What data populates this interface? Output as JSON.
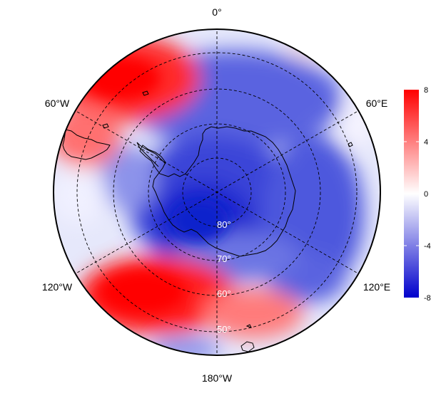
{
  "map": {
    "type": "polar-stereographic",
    "hemisphere": "south",
    "longitude_labels": {
      "top": "0°",
      "bottom": "180°W",
      "upper_left": "60°W",
      "upper_right": "60°E",
      "lower_left": "120°W",
      "lower_right": "120°E"
    },
    "latitude_labels": [
      "80°",
      "70°",
      "60°",
      "50°"
    ],
    "features": [
      "Antarctica coastline",
      "South America tip",
      "sub-Antarctic islands"
    ],
    "graticule_style": "dashed"
  },
  "colorbar": {
    "ticks": [
      "8",
      "4",
      "0",
      "-4",
      "-8"
    ],
    "min": -8,
    "max": 8,
    "colors": {
      "high": "#ff0000",
      "mid": "#ffffff",
      "low": "#0000cc"
    }
  },
  "field": {
    "description": "anomaly field with positive (red) and negative (blue) regions",
    "positive_regions": [
      "South Atlantic / 45-90°W mid-latitudes",
      "South Pacific ~150°W mid-latitudes"
    ],
    "negative_regions": [
      "Antarctic continent and adjacent seas",
      "Indian Ocean sector 60-120°E"
    ]
  }
}
